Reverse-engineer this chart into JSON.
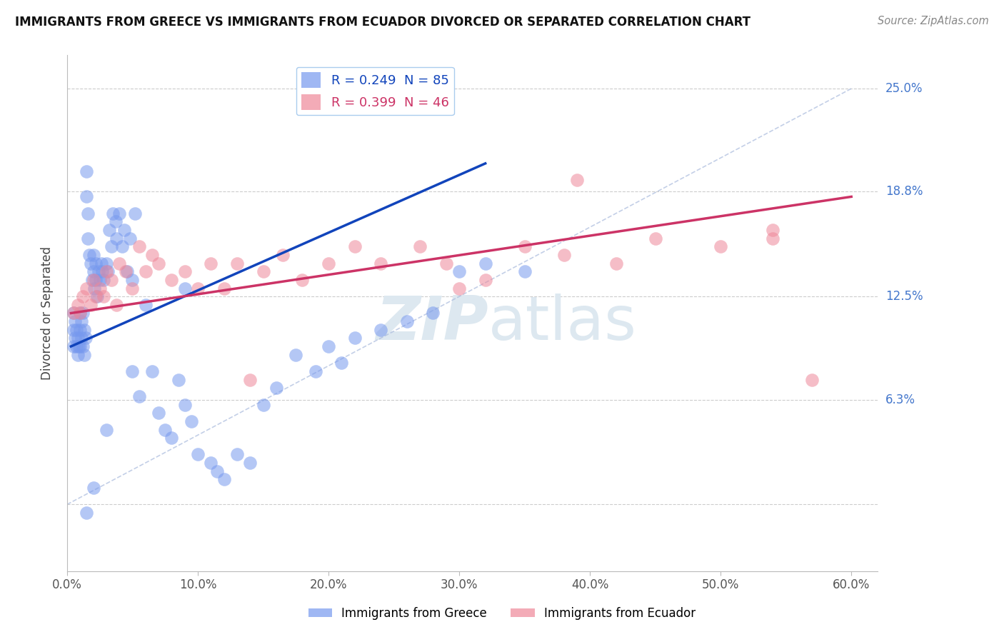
{
  "title": "IMMIGRANTS FROM GREECE VS IMMIGRANTS FROM ECUADOR DIVORCED OR SEPARATED CORRELATION CHART",
  "source": "Source: ZipAtlas.com",
  "ylabel": "Divorced or Separated",
  "xlim": [
    0.0,
    0.62
  ],
  "ylim": [
    -0.04,
    0.27
  ],
  "yticks": [
    0.0,
    0.063,
    0.125,
    0.188,
    0.25
  ],
  "ytick_labels": [
    "",
    "6.3%",
    "12.5%",
    "18.8%",
    "25.0%"
  ],
  "xticks": [
    0.0,
    0.1,
    0.2,
    0.3,
    0.4,
    0.5,
    0.6
  ],
  "xtick_labels": [
    "0.0%",
    "10.0%",
    "20.0%",
    "30.0%",
    "40.0%",
    "50.0%",
    "60.0%"
  ],
  "greece_color": "#7799ee",
  "ecuador_color": "#ee8899",
  "greece_R": 0.249,
  "greece_N": 85,
  "ecuador_R": 0.399,
  "ecuador_N": 46,
  "greece_line_color": "#1144bb",
  "ecuador_line_color": "#cc3366",
  "watermark_color": "#dde8f0",
  "greece_line_x": [
    0.003,
    0.32
  ],
  "greece_line_y": [
    0.095,
    0.205
  ],
  "ecuador_line_x": [
    0.003,
    0.6
  ],
  "ecuador_line_y": [
    0.115,
    0.185
  ],
  "ref_line_x": [
    0.0,
    0.6
  ],
  "ref_line_y": [
    0.0,
    0.25
  ],
  "greece_x": [
    0.005,
    0.005,
    0.005,
    0.006,
    0.006,
    0.007,
    0.007,
    0.008,
    0.008,
    0.009,
    0.01,
    0.01,
    0.01,
    0.011,
    0.011,
    0.012,
    0.012,
    0.013,
    0.013,
    0.014,
    0.015,
    0.015,
    0.016,
    0.016,
    0.017,
    0.018,
    0.019,
    0.02,
    0.02,
    0.021,
    0.022,
    0.022,
    0.023,
    0.024,
    0.025,
    0.026,
    0.027,
    0.028,
    0.03,
    0.031,
    0.032,
    0.034,
    0.035,
    0.037,
    0.038,
    0.04,
    0.042,
    0.044,
    0.046,
    0.048,
    0.05,
    0.052,
    0.055,
    0.06,
    0.065,
    0.07,
    0.075,
    0.08,
    0.085,
    0.09,
    0.095,
    0.1,
    0.11,
    0.115,
    0.12,
    0.13,
    0.14,
    0.15,
    0.16,
    0.175,
    0.19,
    0.2,
    0.21,
    0.22,
    0.24,
    0.26,
    0.28,
    0.3,
    0.32,
    0.35,
    0.09,
    0.05,
    0.03,
    0.02,
    0.015
  ],
  "greece_y": [
    0.115,
    0.105,
    0.095,
    0.11,
    0.1,
    0.105,
    0.095,
    0.1,
    0.09,
    0.095,
    0.115,
    0.105,
    0.095,
    0.11,
    0.1,
    0.115,
    0.095,
    0.105,
    0.09,
    0.1,
    0.2,
    0.185,
    0.175,
    0.16,
    0.15,
    0.145,
    0.135,
    0.15,
    0.14,
    0.13,
    0.145,
    0.135,
    0.125,
    0.14,
    0.135,
    0.145,
    0.14,
    0.135,
    0.145,
    0.14,
    0.165,
    0.155,
    0.175,
    0.17,
    0.16,
    0.175,
    0.155,
    0.165,
    0.14,
    0.16,
    0.135,
    0.175,
    0.065,
    0.12,
    0.08,
    0.055,
    0.045,
    0.04,
    0.075,
    0.06,
    0.05,
    0.03,
    0.025,
    0.02,
    0.015,
    0.03,
    0.025,
    0.06,
    0.07,
    0.09,
    0.08,
    0.095,
    0.085,
    0.1,
    0.105,
    0.11,
    0.115,
    0.14,
    0.145,
    0.14,
    0.13,
    0.08,
    0.045,
    0.01,
    -0.005
  ],
  "ecuador_x": [
    0.005,
    0.008,
    0.01,
    0.012,
    0.015,
    0.018,
    0.02,
    0.022,
    0.025,
    0.028,
    0.03,
    0.034,
    0.038,
    0.04,
    0.045,
    0.05,
    0.055,
    0.06,
    0.065,
    0.07,
    0.08,
    0.09,
    0.1,
    0.11,
    0.12,
    0.13,
    0.14,
    0.15,
    0.165,
    0.18,
    0.2,
    0.22,
    0.24,
    0.27,
    0.29,
    0.32,
    0.35,
    0.38,
    0.42,
    0.45,
    0.5,
    0.54,
    0.57,
    0.54,
    0.39,
    0.3
  ],
  "ecuador_y": [
    0.115,
    0.12,
    0.115,
    0.125,
    0.13,
    0.12,
    0.135,
    0.125,
    0.13,
    0.125,
    0.14,
    0.135,
    0.12,
    0.145,
    0.14,
    0.13,
    0.155,
    0.14,
    0.15,
    0.145,
    0.135,
    0.14,
    0.13,
    0.145,
    0.13,
    0.145,
    0.075,
    0.14,
    0.15,
    0.135,
    0.145,
    0.155,
    0.145,
    0.155,
    0.145,
    0.135,
    0.155,
    0.15,
    0.145,
    0.16,
    0.155,
    0.165,
    0.075,
    0.16,
    0.195,
    0.13
  ]
}
